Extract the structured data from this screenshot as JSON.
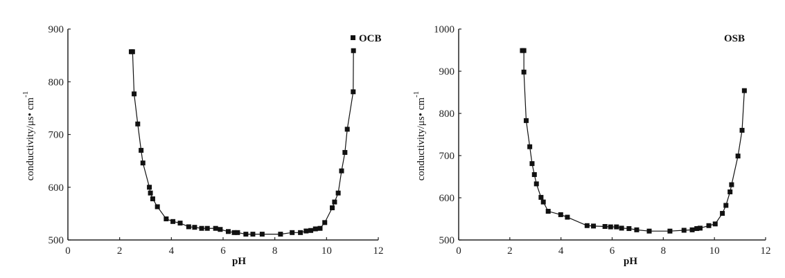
{
  "chart_data": [
    {
      "type": "line",
      "xlabel": "pH",
      "ylabel": "conductivity/μs• cm",
      "ylabel_sup": "-1",
      "xlim": [
        0,
        12
      ],
      "ylim": [
        500,
        900
      ],
      "xticks": [
        0,
        2,
        4,
        6,
        8,
        10,
        12
      ],
      "yticks": [
        500,
        600,
        700,
        800,
        900
      ],
      "grid": false,
      "legend": "top-right",
      "marker": "square",
      "color": "#111111",
      "series": [
        {
          "name": "OCB",
          "x": [
            2.45,
            2.5,
            2.56,
            2.7,
            2.83,
            2.9,
            3.15,
            3.19,
            3.28,
            3.46,
            3.8,
            4.06,
            4.34,
            4.67,
            4.9,
            5.17,
            5.39,
            5.71,
            5.89,
            6.2,
            6.43,
            6.56,
            6.88,
            7.15,
            7.51,
            8.22,
            8.67,
            8.99,
            9.21,
            9.39,
            9.57,
            9.75,
            9.93,
            10.22,
            10.31,
            10.45,
            10.58,
            10.71,
            10.8,
            11.03,
            11.04
          ],
          "y": [
            857,
            857,
            777,
            720,
            670,
            646,
            600,
            589,
            578,
            563,
            540,
            535,
            532,
            525,
            524,
            522,
            522,
            522,
            520,
            516,
            514,
            514,
            511,
            511,
            511,
            511,
            514,
            514,
            517,
            518,
            521,
            522,
            533,
            561,
            572,
            589,
            631,
            666,
            710,
            781,
            859
          ]
        }
      ]
    },
    {
      "type": "line",
      "xlabel": "pH",
      "ylabel": "conductivity/μs• cm",
      "ylabel_sup": "-1",
      "xlim": [
        0,
        12
      ],
      "ylim": [
        500,
        1000
      ],
      "xticks": [
        0,
        2,
        4,
        6,
        8,
        10,
        12
      ],
      "yticks": [
        500,
        600,
        700,
        800,
        900,
        1000
      ],
      "grid": false,
      "legend": "top-right",
      "marker": "square",
      "color": "#111111",
      "series": [
        {
          "name": "OSB",
          "x": [
            2.49,
            2.55,
            2.55,
            2.64,
            2.78,
            2.87,
            2.96,
            3.04,
            3.22,
            3.31,
            3.5,
            3.99,
            4.25,
            5.02,
            5.27,
            5.72,
            5.94,
            6.17,
            6.37,
            6.66,
            6.96,
            7.45,
            8.26,
            8.81,
            9.13,
            9.31,
            9.44,
            9.78,
            10.03,
            10.31,
            10.45,
            10.61,
            10.67,
            10.92,
            11.08,
            11.17
          ],
          "y": [
            949,
            949,
            898,
            783,
            721,
            681,
            655,
            633,
            601,
            590,
            568,
            560,
            554,
            534,
            533,
            532,
            531,
            531,
            528,
            527,
            524,
            521,
            521,
            523,
            524,
            527,
            528,
            534,
            538,
            563,
            582,
            614,
            631,
            699,
            760,
            854
          ]
        }
      ]
    }
  ]
}
